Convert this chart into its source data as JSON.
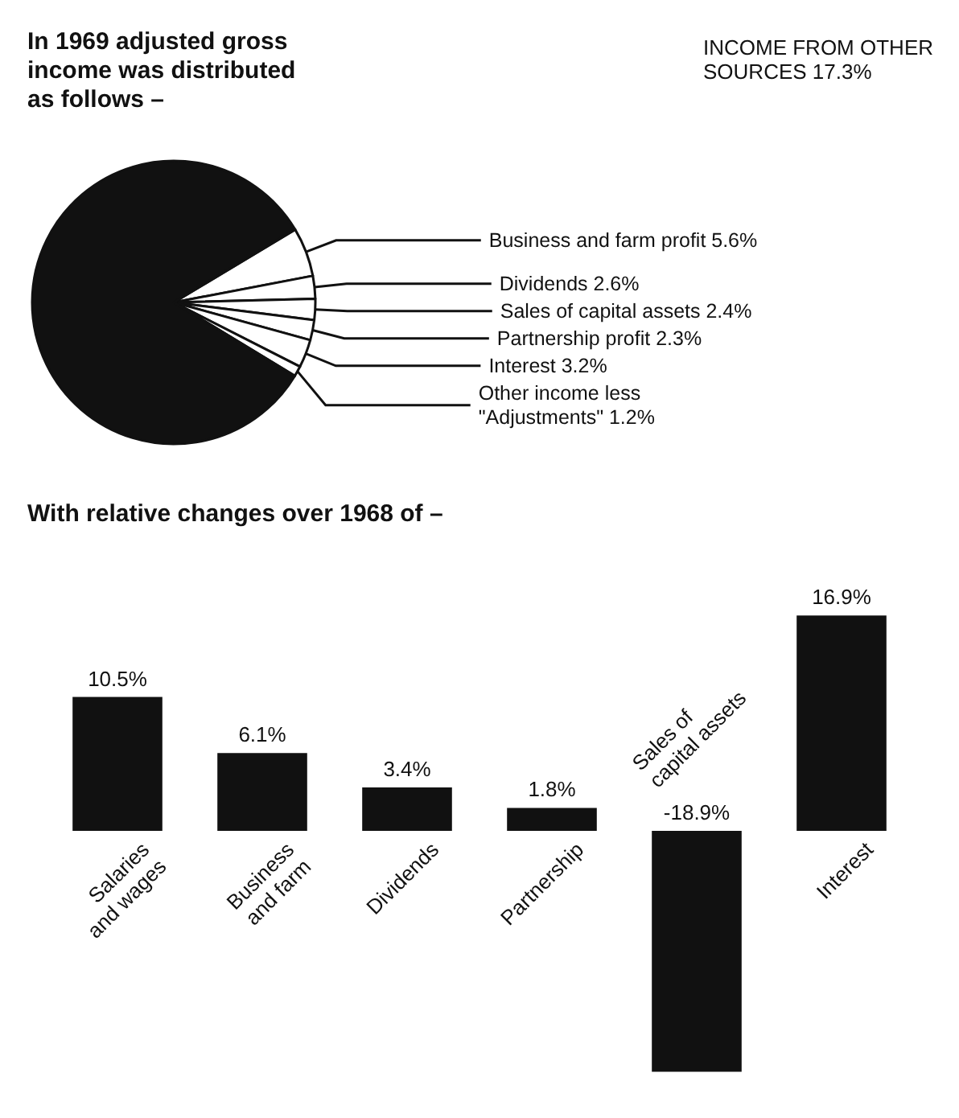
{
  "chart_data": [
    {
      "type": "pie",
      "title": "In 1969 adjusted gross\nincome was distributed\nas follows –",
      "categories": [
        "Business and farm profit",
        "Dividends",
        "Sales of capital assets",
        "Partnership profit",
        "Interest",
        "Other income less \"Adjustments\"",
        null
      ],
      "values": [
        5.6,
        2.6,
        2.4,
        2.3,
        3.2,
        1.2,
        82.7
      ],
      "value_labels": [
        "5.6%",
        "2.6%",
        "2.4%",
        "2.3%",
        "3.2%",
        "1.2%",
        null
      ],
      "colors": [
        "#ffffff",
        "#ffffff",
        "#ffffff",
        "#ffffff",
        "#ffffff",
        "#ffffff",
        "#111111"
      ],
      "annotations": [
        "INCOME FROM OTHER\nSOURCES 17.3%"
      ]
    },
    {
      "type": "bar",
      "title": "With relative changes over 1968 of –",
      "categories": [
        "Salaries\nand wages",
        "Business\nand farm",
        "Dividends",
        "Partnership",
        "Sales of\ncapital assets",
        "Interest"
      ],
      "values": [
        10.5,
        6.1,
        3.4,
        1.8,
        -18.9,
        16.9
      ],
      "value_labels": [
        "10.5%",
        "6.1%",
        "3.4%",
        "1.8%",
        "-18.9%",
        "16.9%"
      ],
      "color": "#111111"
    }
  ]
}
